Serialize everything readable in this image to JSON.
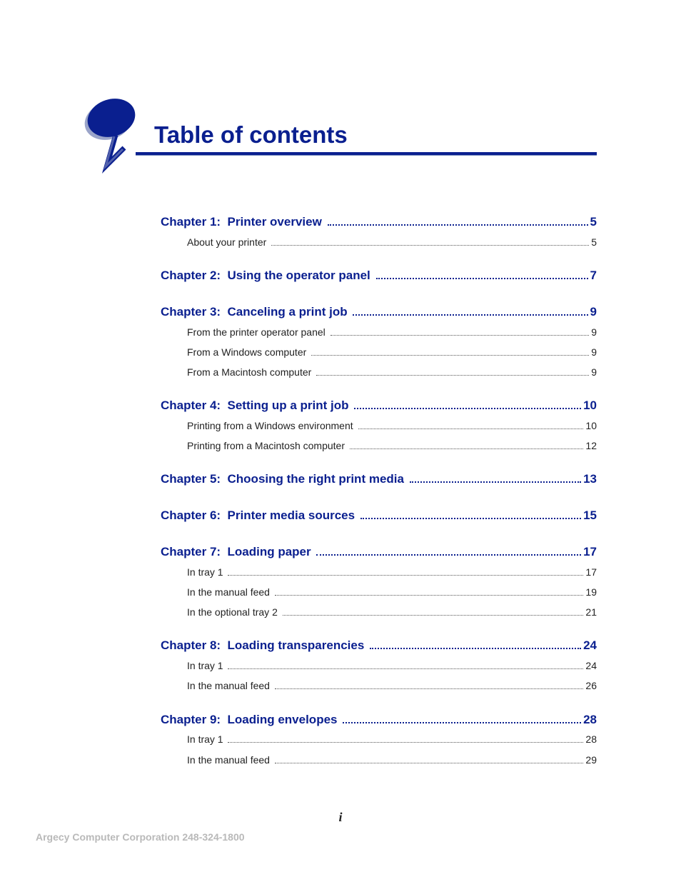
{
  "colors": {
    "accent": "#0a1f8f",
    "rule_light": "#7a8fbf",
    "body_text": "#222222",
    "footer_text": "#b9b9b9",
    "logo_shadow": "#9aa4c9"
  },
  "title": "Table of contents",
  "page_number": "i",
  "footer": "Argecy Computer Corporation 248-324-1800",
  "chapters": [
    {
      "label": "Chapter 1:  Printer overview ",
      "page": "5",
      "sections": [
        {
          "label": "About your printer ",
          "page": "5"
        }
      ]
    },
    {
      "label": "Chapter 2:  Using the operator panel ",
      "page": "7",
      "sections": []
    },
    {
      "label": "Chapter 3:  Canceling a print job ",
      "page": "9",
      "sections": [
        {
          "label": "From the printer operator panel ",
          "page": "9"
        },
        {
          "label": "From a Windows computer ",
          "page": "9"
        },
        {
          "label": "From a Macintosh computer ",
          "page": "9"
        }
      ]
    },
    {
      "label": "Chapter 4:  Setting up a print job ",
      "page": "10",
      "sections": [
        {
          "label": "Printing from a Windows environment ",
          "page": "10"
        },
        {
          "label": "Printing from a Macintosh computer ",
          "page": "12"
        }
      ]
    },
    {
      "label": "Chapter 5:  Choosing the right print media ",
      "page": "13",
      "sections": []
    },
    {
      "label": "Chapter 6:  Printer media sources ",
      "page": "15",
      "sections": []
    },
    {
      "label": "Chapter 7:  Loading paper ",
      "page": "17",
      "sections": [
        {
          "label": "In tray 1 ",
          "page": "17"
        },
        {
          "label": "In the manual feed ",
          "page": "19"
        },
        {
          "label": "In the optional tray 2 ",
          "page": "21"
        }
      ]
    },
    {
      "label": "Chapter 8:  Loading transparencies ",
      "page": "24",
      "sections": [
        {
          "label": "In tray 1 ",
          "page": "24"
        },
        {
          "label": "In the manual feed ",
          "page": "26"
        }
      ]
    },
    {
      "label": "Chapter 9:  Loading envelopes ",
      "page": "28",
      "sections": [
        {
          "label": "In tray 1 ",
          "page": "28"
        },
        {
          "label": "In the manual feed ",
          "page": "29"
        }
      ]
    }
  ]
}
